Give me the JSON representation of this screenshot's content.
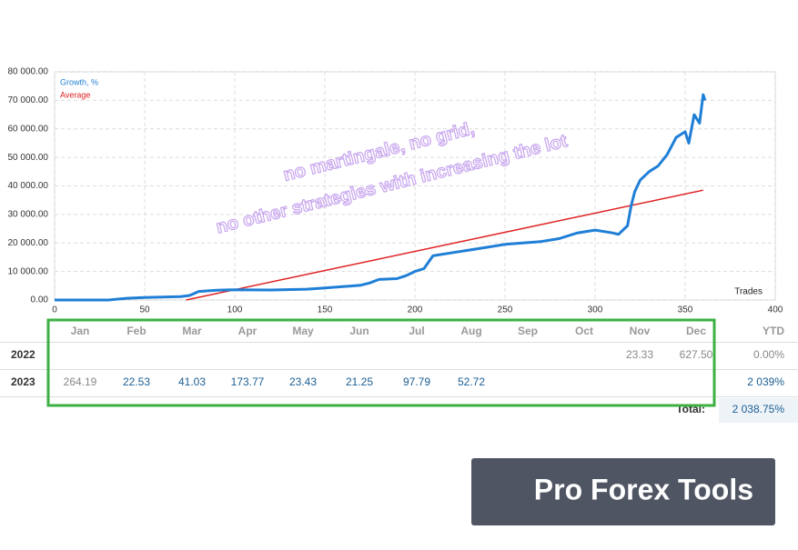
{
  "chart_data": {
    "type": "line",
    "xlabel": "Trades",
    "xlim": [
      0,
      400
    ],
    "xticks": [
      0,
      50,
      100,
      150,
      200,
      250,
      300,
      350,
      400
    ],
    "ylim": [
      0,
      80000
    ],
    "yticks": [
      {
        "value": 0,
        "label": "0.00"
      },
      {
        "value": 10000,
        "label": "10 000.00"
      },
      {
        "value": 20000,
        "label": "20 000.00"
      },
      {
        "value": 30000,
        "label": "30 000.00"
      },
      {
        "value": 40000,
        "label": "40 000.00"
      },
      {
        "value": 50000,
        "label": "50 000.00"
      },
      {
        "value": 60000,
        "label": "60 000.00"
      },
      {
        "value": 70000,
        "label": "70 000.00"
      },
      {
        "value": 80000,
        "label": "80 000.00"
      }
    ],
    "grid": true,
    "legend": "top-left",
    "series": [
      {
        "name": "Growth, %",
        "color": "#1f7fd6",
        "x": [
          0,
          30,
          40,
          50,
          70,
          75,
          80,
          90,
          100,
          120,
          140,
          150,
          160,
          170,
          175,
          180,
          190,
          195,
          200,
          205,
          210,
          220,
          230,
          240,
          250,
          260,
          270,
          280,
          290,
          300,
          305,
          310,
          313,
          318,
          320,
          322,
          325,
          330,
          335,
          340,
          345,
          350,
          352,
          355,
          358,
          360,
          361
        ],
        "values": [
          0,
          0,
          600,
          900,
          1200,
          1600,
          3000,
          3400,
          3600,
          3500,
          3800,
          4200,
          4700,
          5200,
          6000,
          7200,
          7500,
          8500,
          10000,
          11000,
          15500,
          16500,
          17500,
          18500,
          19500,
          20000,
          20500,
          21500,
          23500,
          24500,
          24000,
          23500,
          23000,
          26000,
          33000,
          38000,
          42000,
          45000,
          47000,
          51000,
          57000,
          59000,
          55000,
          65000,
          62000,
          72000,
          70000
        ]
      },
      {
        "name": "Average",
        "color": "#e02020",
        "x": [
          73,
          360
        ],
        "values": [
          0,
          38500
        ]
      }
    ],
    "annotations": [
      "no martingale, no grid,",
      "no other strategies with increasing the lot"
    ]
  },
  "table": {
    "columns": [
      "Jan",
      "Feb",
      "Mar",
      "Apr",
      "May",
      "Jun",
      "Jul",
      "Aug",
      "Sep",
      "Oct",
      "Nov",
      "Dec",
      "YTD"
    ],
    "rows": [
      {
        "year": "2022",
        "cells": {
          "Nov": {
            "text": "23.33",
            "color": "#888888"
          },
          "Dec": {
            "text": "627.50",
            "color": "#888888"
          }
        },
        "ytd": {
          "text": "0.00%",
          "color": "#888888"
        }
      },
      {
        "year": "2023",
        "cells": {
          "Jan": {
            "text": "264.19",
            "color": "#888888"
          },
          "Feb": {
            "text": "22.53",
            "color": "#1a5e94"
          },
          "Mar": {
            "text": "41.03",
            "color": "#1a5e94"
          },
          "Apr": {
            "text": "173.77",
            "color": "#1a5e94"
          },
          "May": {
            "text": "23.43",
            "color": "#1a5e94"
          },
          "Jun": {
            "text": "21.25",
            "color": "#1a5e94"
          },
          "Jul": {
            "text": "97.79",
            "color": "#1a5e94"
          },
          "Aug": {
            "text": "52.72",
            "color": "#1a5e94"
          }
        },
        "ytd": {
          "text": "2 039%",
          "color": "#1a5e94"
        }
      }
    ],
    "total_label": "Total:",
    "total_value": "2 038.75%"
  },
  "badge": "Pro Forex Tools"
}
